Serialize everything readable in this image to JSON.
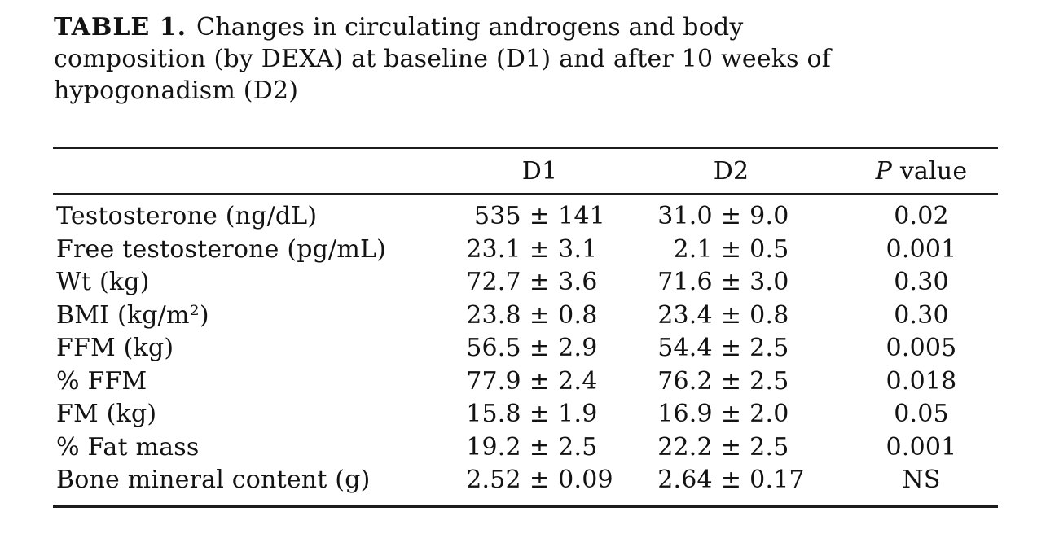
{
  "page": {
    "background_color": "#ffffff",
    "text_color": "#131313",
    "rule_color": "#1c1c1c"
  },
  "caption": {
    "label": "TABLE 1.",
    "line1_rest": "Changes in circulating androgens and body",
    "line2": "composition (by DEXA) at baseline (D1) and after 10 weeks of",
    "line3": "hypogonadism (D2)"
  },
  "table": {
    "pm_sign": "±",
    "header": {
      "d1": "D1",
      "d2": "D2",
      "p_italic": "P",
      "p_rest": "value"
    },
    "rows": [
      {
        "label": "Testosterone (ng/dL)",
        "d1_mean": "535",
        "d1_sd": "141",
        "d2_mean": "31.0",
        "d2_sd": "9.0",
        "p": "0.02"
      },
      {
        "label": "Free testosterone (pg/mL)",
        "d1_mean": "23.1",
        "d1_sd": "3.1",
        "d2_mean": "2.1",
        "d2_sd": "0.5",
        "p": "0.001"
      },
      {
        "label": "Wt (kg)",
        "d1_mean": "72.7",
        "d1_sd": "3.6",
        "d2_mean": "71.6",
        "d2_sd": "3.0",
        "p": "0.30"
      },
      {
        "label": "BMI (kg/m²)",
        "d1_mean": "23.8",
        "d1_sd": "0.8",
        "d2_mean": "23.4",
        "d2_sd": "0.8",
        "p": "0.30"
      },
      {
        "label": "FFM (kg)",
        "d1_mean": "56.5",
        "d1_sd": "2.9",
        "d2_mean": "54.4",
        "d2_sd": "2.5",
        "p": "0.005"
      },
      {
        "label": "% FFM",
        "d1_mean": "77.9",
        "d1_sd": "2.4",
        "d2_mean": "76.2",
        "d2_sd": "2.5",
        "p": "0.018"
      },
      {
        "label": "FM (kg)",
        "d1_mean": "15.8",
        "d1_sd": "1.9",
        "d2_mean": "16.9",
        "d2_sd": "2.0",
        "p": "0.05"
      },
      {
        "label": "% Fat mass",
        "d1_mean": "19.2",
        "d1_sd": "2.5",
        "d2_mean": "22.2",
        "d2_sd": "2.5",
        "p": "0.001"
      },
      {
        "label": "Bone mineral content (g)",
        "d1_mean": "2.52",
        "d1_sd": "0.09",
        "d2_mean": "2.64",
        "d2_sd": "0.17",
        "p": "NS"
      }
    ]
  }
}
